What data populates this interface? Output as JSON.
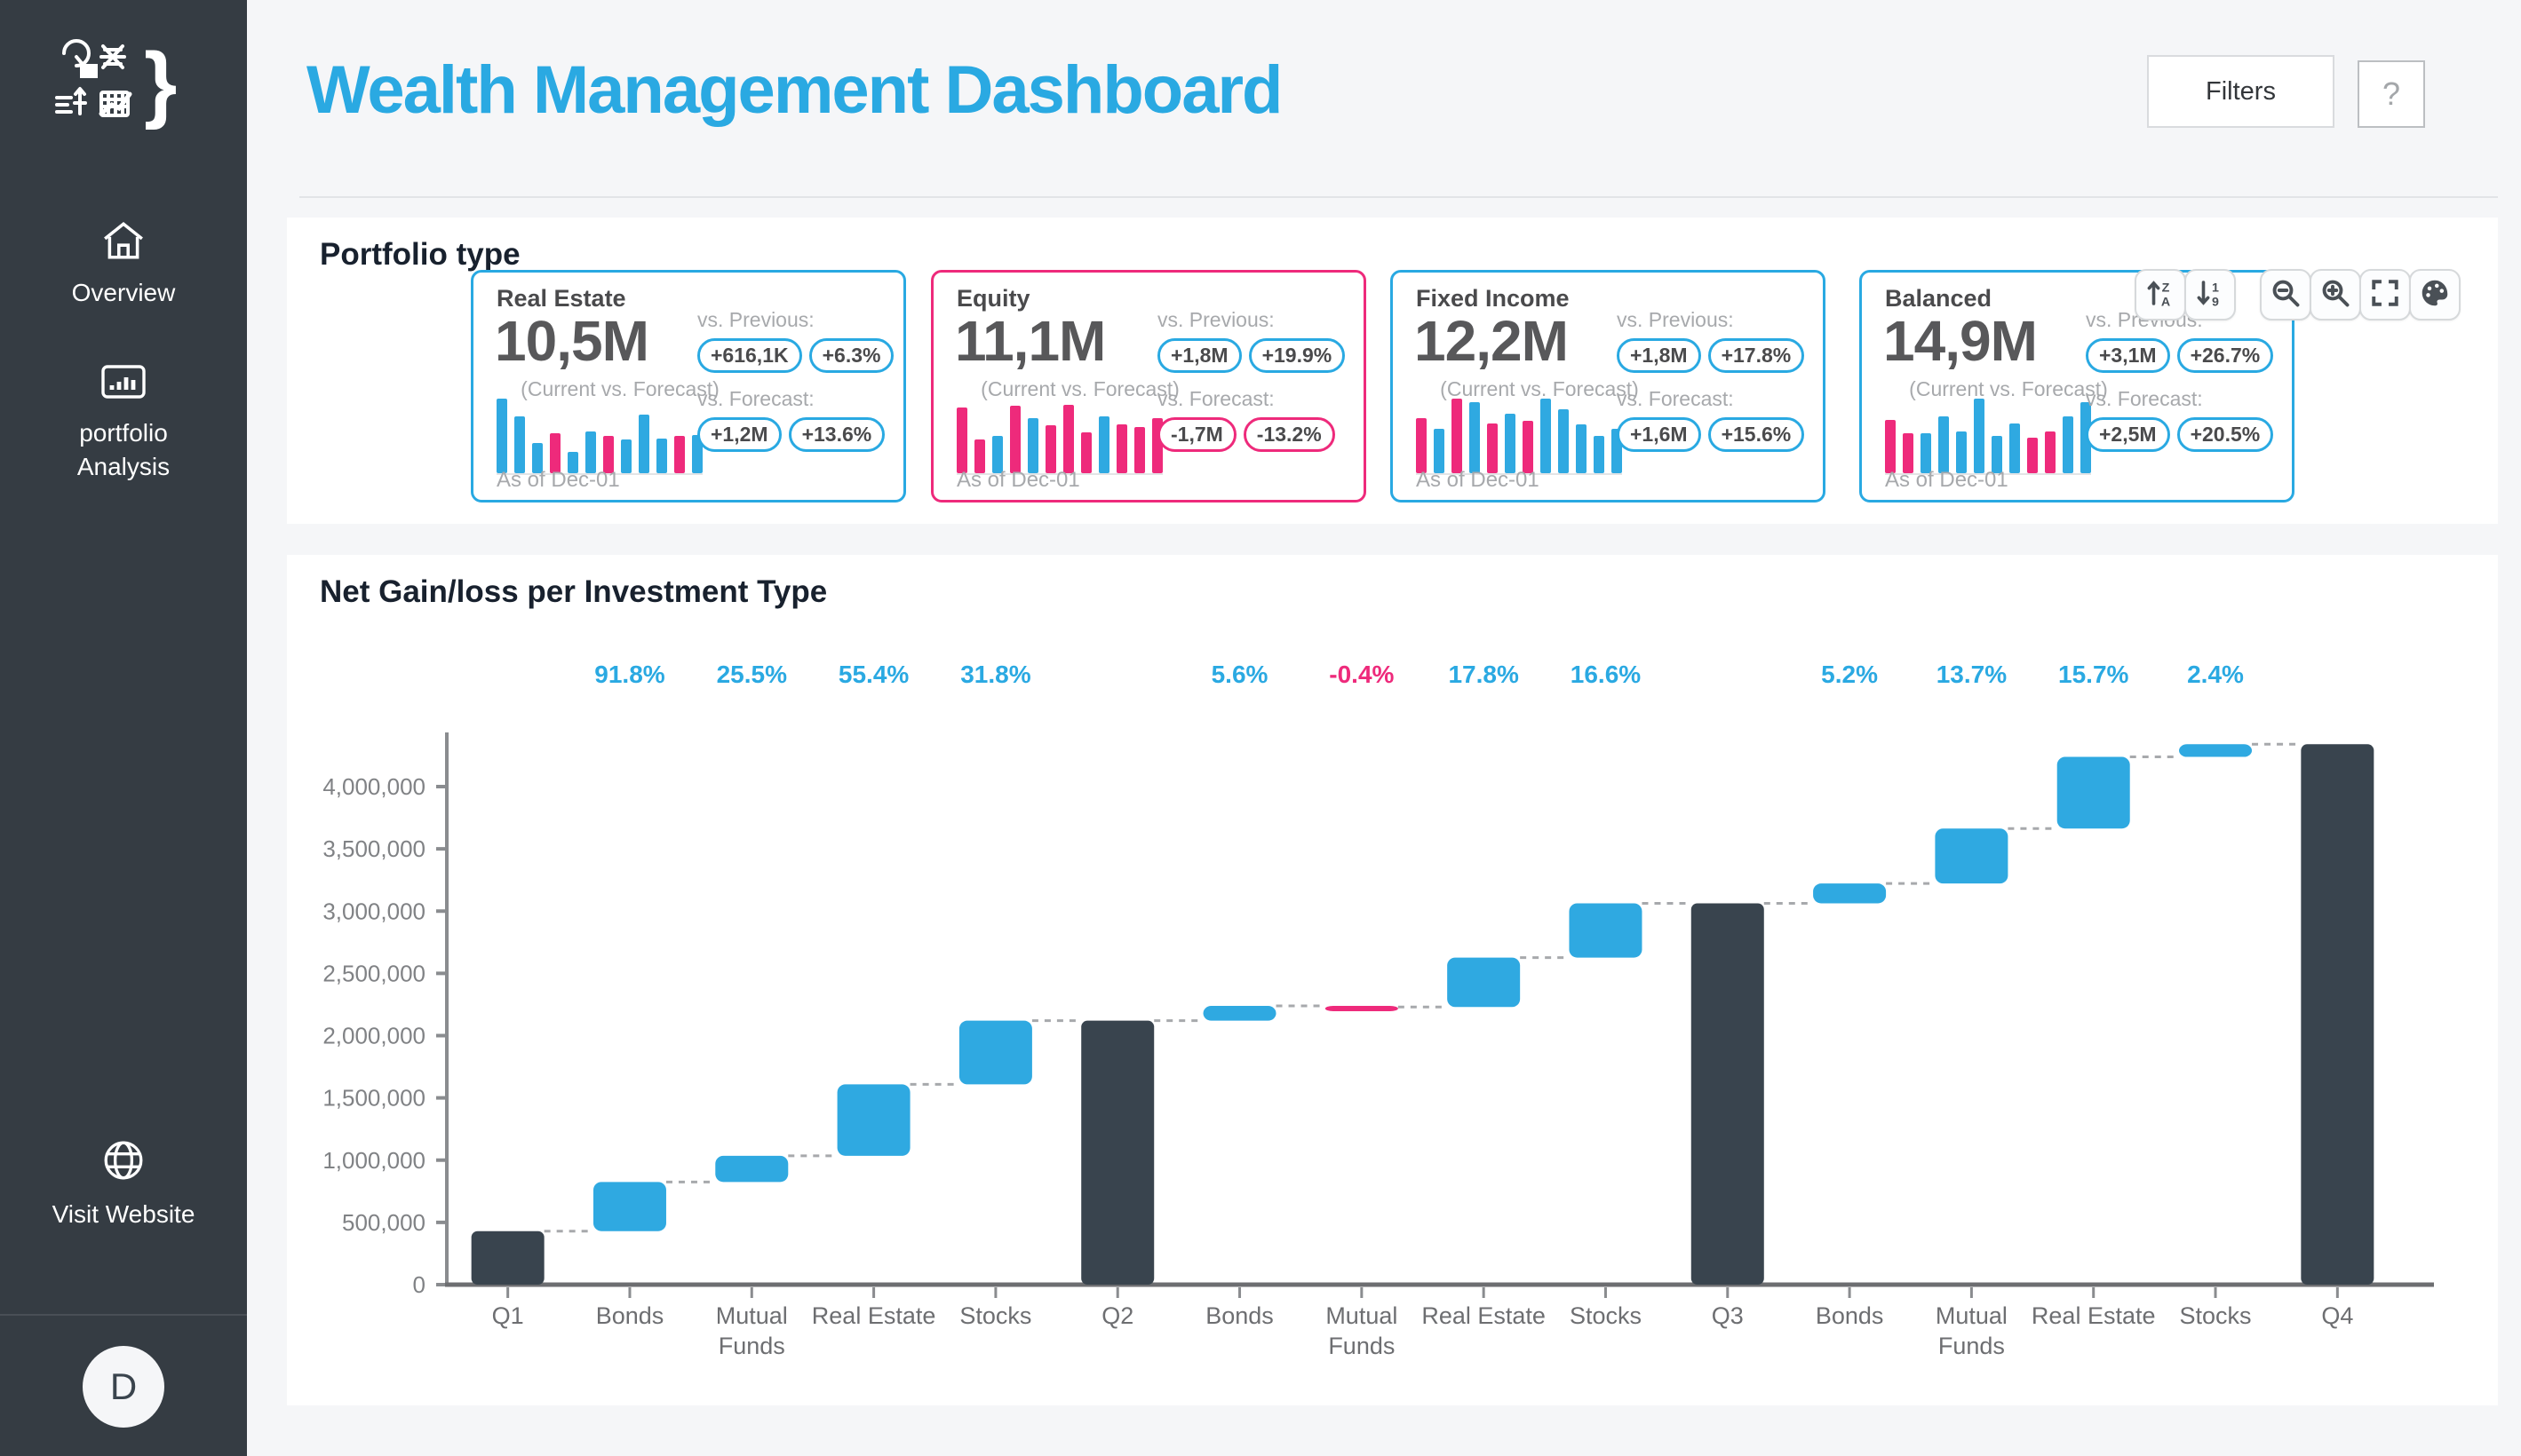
{
  "app": {
    "title": "Wealth Management Dashboard"
  },
  "header": {
    "filters_label": "Filters",
    "help_label": "?"
  },
  "sidebar": {
    "brand_glyph": "}",
    "items": [
      {
        "label": "Overview",
        "icon": "home-icon"
      },
      {
        "label": "portfolio Analysis",
        "icon": "bar-chart-icon"
      }
    ],
    "footer_item": {
      "label": "Visit Website",
      "icon": "globe-icon"
    },
    "avatar_initial": "D"
  },
  "toolbar": {
    "buttons": [
      {
        "name": "sort-ascending"
      },
      {
        "name": "sort-descending"
      },
      {
        "name": "zoom-out"
      },
      {
        "name": "zoom-in"
      },
      {
        "name": "fullscreen"
      },
      {
        "name": "palette"
      }
    ]
  },
  "portfolio": {
    "section_title": "Portfolio type",
    "cards": [
      {
        "title": "Real Estate",
        "value": "10,5M",
        "subtitle": "(Current vs. Forecast)",
        "as_of": "As of Dec-01",
        "accent": "blue",
        "previous": {
          "label": "vs. Previous:",
          "badges": [
            {
              "text": "+616,1K",
              "tone": "blue"
            },
            {
              "text": "+6.3%",
              "tone": "blue"
            }
          ]
        },
        "forecast": {
          "label": "vs. Forecast:",
          "badges": [
            {
              "text": "+1,2M",
              "tone": "blue"
            },
            {
              "text": "+13.6%",
              "tone": "blue"
            }
          ]
        },
        "bars": [
          {
            "h": 100,
            "c": "blue"
          },
          {
            "h": 76,
            "c": "blue"
          },
          {
            "h": 40,
            "c": "blue"
          },
          {
            "h": 54,
            "c": "pink"
          },
          {
            "h": 28,
            "c": "blue"
          },
          {
            "h": 56,
            "c": "blue"
          },
          {
            "h": 50,
            "c": "pink"
          },
          {
            "h": 45,
            "c": "blue"
          },
          {
            "h": 78,
            "c": "blue"
          },
          {
            "h": 46,
            "c": "blue"
          },
          {
            "h": 50,
            "c": "pink"
          },
          {
            "h": 51,
            "c": "blue"
          }
        ]
      },
      {
        "title": "Equity",
        "value": "11,1M",
        "subtitle": "(Current vs. Forecast)",
        "as_of": "As of Dec-01",
        "accent": "pink",
        "previous": {
          "label": "vs. Previous:",
          "badges": [
            {
              "text": "+1,8M",
              "tone": "blue"
            },
            {
              "text": "+19.9%",
              "tone": "blue"
            }
          ]
        },
        "forecast": {
          "label": "vs. Forecast:",
          "badges": [
            {
              "text": "-1,7M",
              "tone": "pink"
            },
            {
              "text": "-13.2%",
              "tone": "pink"
            }
          ]
        },
        "bars": [
          {
            "h": 88,
            "c": "pink"
          },
          {
            "h": 45,
            "c": "pink"
          },
          {
            "h": 50,
            "c": "blue"
          },
          {
            "h": 90,
            "c": "pink"
          },
          {
            "h": 74,
            "c": "blue"
          },
          {
            "h": 64,
            "c": "pink"
          },
          {
            "h": 92,
            "c": "pink"
          },
          {
            "h": 55,
            "c": "pink"
          },
          {
            "h": 76,
            "c": "blue"
          },
          {
            "h": 66,
            "c": "pink"
          },
          {
            "h": 62,
            "c": "pink"
          },
          {
            "h": 74,
            "c": "pink"
          }
        ]
      },
      {
        "title": "Fixed Income",
        "value": "12,2M",
        "subtitle": "(Current vs. Forecast)",
        "as_of": "As of Dec-01",
        "accent": "blue",
        "previous": {
          "label": "vs. Previous:",
          "badges": [
            {
              "text": "+1,8M",
              "tone": "blue"
            },
            {
              "text": "+17.8%",
              "tone": "blue"
            }
          ]
        },
        "forecast": {
          "label": "vs. Forecast:",
          "badges": [
            {
              "text": "+1,6M",
              "tone": "blue"
            },
            {
              "text": "+15.6%",
              "tone": "blue"
            }
          ]
        },
        "bars": [
          {
            "h": 74,
            "c": "pink"
          },
          {
            "h": 60,
            "c": "blue"
          },
          {
            "h": 100,
            "c": "pink"
          },
          {
            "h": 95,
            "c": "blue"
          },
          {
            "h": 67,
            "c": "pink"
          },
          {
            "h": 80,
            "c": "blue"
          },
          {
            "h": 70,
            "c": "pink"
          },
          {
            "h": 100,
            "c": "blue"
          },
          {
            "h": 86,
            "c": "blue"
          },
          {
            "h": 66,
            "c": "blue"
          },
          {
            "h": 50,
            "c": "blue"
          },
          {
            "h": 60,
            "c": "blue"
          }
        ]
      },
      {
        "title": "Balanced",
        "value": "14,9M",
        "subtitle": "(Current vs. Forecast)",
        "as_of": "As of Dec-01",
        "accent": "blue",
        "previous": {
          "label": "vs. Previous:",
          "badges": [
            {
              "text": "+3,1M",
              "tone": "blue"
            },
            {
              "text": "+26.7%",
              "tone": "blue"
            }
          ]
        },
        "forecast": {
          "label": "vs. Forecast:",
          "badges": [
            {
              "text": "+2,5M",
              "tone": "blue"
            },
            {
              "text": "+20.5%",
              "tone": "blue"
            }
          ]
        },
        "bars": [
          {
            "h": 72,
            "c": "pink"
          },
          {
            "h": 53,
            "c": "pink"
          },
          {
            "h": 54,
            "c": "blue"
          },
          {
            "h": 76,
            "c": "blue"
          },
          {
            "h": 56,
            "c": "blue"
          },
          {
            "h": 100,
            "c": "blue"
          },
          {
            "h": 50,
            "c": "blue"
          },
          {
            "h": 67,
            "c": "blue"
          },
          {
            "h": 48,
            "c": "pink"
          },
          {
            "h": 56,
            "c": "pink"
          },
          {
            "h": 76,
            "c": "blue"
          },
          {
            "h": 95,
            "c": "blue"
          }
        ]
      }
    ]
  },
  "chart_data": {
    "type": "bar",
    "subtype": "waterfall",
    "title": "Net Gain/loss per Investment Type",
    "xlabel": "",
    "ylabel": "",
    "ylim": [
      0,
      4450000
    ],
    "yticks": [
      0,
      500000,
      1000000,
      1500000,
      2000000,
      2500000,
      3000000,
      3500000,
      4000000
    ],
    "grid": false,
    "legend": "none",
    "colors": {
      "total": "#39444e",
      "gain": "#2fa9e1",
      "loss": "#ee2a7b"
    },
    "items": [
      {
        "label": [
          "Q1"
        ],
        "kind": "total",
        "value": 430000,
        "pct": ""
      },
      {
        "label": [
          "Bonds"
        ],
        "kind": "gain",
        "delta": 394740,
        "pct": "91.8%"
      },
      {
        "label": [
          "Mutual",
          "Funds"
        ],
        "kind": "gain",
        "delta": 210310,
        "pct": "25.5%"
      },
      {
        "label": [
          "Real Estate"
        ],
        "kind": "gain",
        "delta": 573420,
        "pct": "55.4%"
      },
      {
        "label": [
          "Stocks"
        ],
        "kind": "gain",
        "delta": 511490,
        "pct": "31.8%"
      },
      {
        "label": [
          "Q2"
        ],
        "kind": "total",
        "value": 2119960,
        "pct": ""
      },
      {
        "label": [
          "Bonds"
        ],
        "kind": "gain",
        "delta": 118720,
        "pct": "5.6%"
      },
      {
        "label": [
          "Mutual",
          "Funds"
        ],
        "kind": "loss",
        "delta": -8960,
        "pct": "-0.4%"
      },
      {
        "label": [
          "Real Estate"
        ],
        "kind": "gain",
        "delta": 396890,
        "pct": "17.8%"
      },
      {
        "label": [
          "Stocks"
        ],
        "kind": "gain",
        "delta": 436020,
        "pct": "16.6%"
      },
      {
        "label": [
          "Q3"
        ],
        "kind": "total",
        "value": 3062630,
        "pct": ""
      },
      {
        "label": [
          "Bonds"
        ],
        "kind": "gain",
        "delta": 159260,
        "pct": "5.2%"
      },
      {
        "label": [
          "Mutual",
          "Funds"
        ],
        "kind": "gain",
        "delta": 441400,
        "pct": "13.7%"
      },
      {
        "label": [
          "Real Estate"
        ],
        "kind": "gain",
        "delta": 575140,
        "pct": "15.7%"
      },
      {
        "label": [
          "Stocks"
        ],
        "kind": "gain",
        "delta": 101720,
        "pct": "2.4%"
      },
      {
        "label": [
          "Q4"
        ],
        "kind": "total",
        "value": 4340140,
        "pct": ""
      }
    ]
  },
  "colors": {
    "accent_blue": "#2aa9e2",
    "accent_pink": "#ee2a7b",
    "bar_dark": "#39444e",
    "sidebar_bg": "#353c43"
  }
}
